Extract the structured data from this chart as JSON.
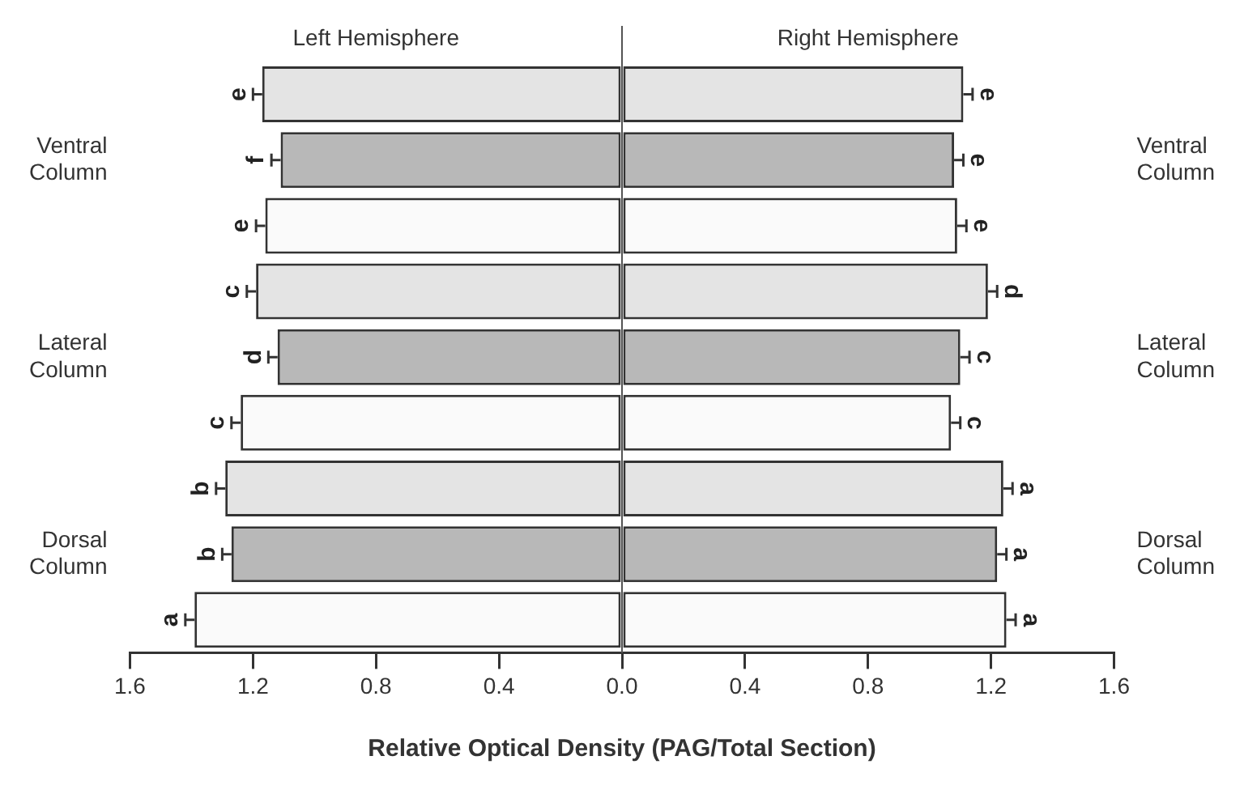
{
  "chart_data": {
    "type": "bar",
    "orientation": "horizontal",
    "stacked": true,
    "xlabel": "Relative Optical Density (PAG/Total Section)",
    "annotations": [
      "Left Hemisphere",
      "Right Hemisphere"
    ],
    "categories": [
      null,
      "Ventral Column",
      null,
      null,
      "Lateral Column",
      null,
      null,
      "Dorsal Column",
      null
    ],
    "series": [
      {
        "colors": [
          "#e4e4e4",
          "#b8b8b8",
          "#fafafa",
          "#e4e4e4",
          "#b8b8b8",
          "#fafafa",
          "#e4e4e4",
          "#b8b8b8",
          "#fafafa"
        ],
        "values": [
          -1.17,
          -1.11,
          -1.16,
          -1.19,
          -1.12,
          -1.24,
          -1.29,
          -1.27,
          -1.39
        ],
        "errors": [
          0.03,
          0.03,
          0.03,
          0.03,
          0.03,
          0.03,
          0.03,
          0.03,
          0.03
        ],
        "value_labels": [
          "e",
          "f",
          "e",
          "c",
          "d",
          "c",
          "b",
          "b",
          "a"
        ]
      },
      {
        "colors": [
          "#e4e4e4",
          "#b8b8b8",
          "#fafafa",
          "#e4e4e4",
          "#b8b8b8",
          "#fafafa",
          "#e4e4e4",
          "#b8b8b8",
          "#fafafa"
        ],
        "values": [
          1.11,
          1.08,
          1.09,
          1.19,
          1.1,
          1.07,
          1.24,
          1.22,
          1.25
        ],
        "errors": [
          0.03,
          0.03,
          0.03,
          0.03,
          0.03,
          0.03,
          0.03,
          0.03,
          0.03
        ],
        "value_labels": [
          "e",
          "e",
          "e",
          "d",
          "c",
          "c",
          "a",
          "a",
          "a"
        ]
      }
    ],
    "xlim": [
      -1.6,
      1.6
    ],
    "xticks": [
      {
        "value": -1.6,
        "label": "1.6"
      },
      {
        "value": -1.2,
        "label": "1.2"
      },
      {
        "value": -0.8,
        "label": "0.8"
      },
      {
        "value": -0.4,
        "label": "0.4"
      },
      {
        "value": 0,
        "label": "0.0"
      },
      0.4,
      0.8,
      1.2,
      1.6
    ],
    "ref_lines": [
      {
        "axis": "x",
        "value": 0
      }
    ],
    "grid": false,
    "legend": false
  }
}
